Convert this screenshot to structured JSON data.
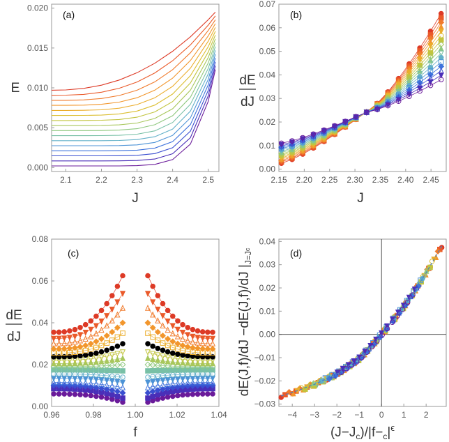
{
  "chart_data": [
    {
      "type": "line",
      "panel_label": "(a)",
      "xlabel": "J",
      "ylabel": "E",
      "xlim": [
        2.06,
        2.53
      ],
      "ylim": [
        -0.0005,
        0.0205
      ],
      "xticks": [
        "2.1",
        "2.2",
        "2.3",
        "2.4",
        "2.5"
      ],
      "yticks": [
        "0.000",
        "0.005",
        "0.010",
        "0.015",
        "0.020"
      ],
      "x": [
        2.06,
        2.1,
        2.15,
        2.2,
        2.25,
        2.3,
        2.35,
        2.4,
        2.45,
        2.5,
        2.52
      ],
      "series_note": "16 curves, f from far (red, top) to near f_c (purple, bottom)",
      "series_ends": {
        "start": [
          0.0002,
          0.0097
        ],
        "end": [
          0.0123,
          0.0195
        ]
      }
    },
    {
      "type": "scatter",
      "panel_label": "(b)",
      "xlabel": "J",
      "ylabel": "dE/dJ",
      "ylabel_top": "dE",
      "ylabel_bottom": "dJ",
      "xlim": [
        2.15,
        2.48
      ],
      "ylim": [
        -0.001,
        0.07
      ],
      "xticks": [
        "2.15",
        "2.20",
        "2.25",
        "2.30",
        "2.35",
        "2.40",
        "2.45"
      ],
      "yticks": [
        "0.00",
        "0.01",
        "0.02",
        "0.03",
        "0.04",
        "0.05",
        "0.06",
        "0.07"
      ],
      "crossing_point": [
        2.32,
        0.024
      ],
      "series_ends": {
        "left": [
          0.0025,
          0.011
        ],
        "right": [
          0.066,
          0.038
        ]
      }
    },
    {
      "type": "scatter",
      "panel_label": "(c)",
      "xlabel": "f",
      "ylabel": "dE/dJ",
      "ylabel_top": "dE",
      "ylabel_bottom": "dJ",
      "xlim": [
        0.96,
        1.04
      ],
      "ylim": [
        0.0,
        0.08
      ],
      "xticks": [
        "0.96",
        "0.98",
        "1.00",
        "1.02",
        "1.04"
      ],
      "yticks": [
        "0.00",
        "0.02",
        "0.04",
        "0.06",
        "0.08"
      ],
      "x_range_left": [
        0.961,
        0.994
      ],
      "x_range_right": [
        1.006,
        1.037
      ],
      "series_outer_values": [
        0.006,
        0.0085,
        0.01,
        0.0115,
        0.0135,
        0.0155,
        0.0175,
        0.019,
        0.0205,
        0.022,
        0.0237,
        0.0255,
        0.0275,
        0.03,
        0.0325,
        0.0355
      ],
      "series_inner_values": [
        0.002,
        0.004,
        0.0065,
        0.009,
        0.0115,
        0.014,
        0.017,
        0.02,
        0.023,
        0.026,
        0.03,
        0.035,
        0.04,
        0.047,
        0.054,
        0.0625
      ],
      "highlight_series": {
        "name": "critical (black)",
        "outer": 0.0237,
        "inner": 0.03
      }
    },
    {
      "type": "scatter",
      "panel_label": "(d)",
      "xlabel": "(J−J_c)/|f−f_c|^ϵ",
      "xlabel_parts": {
        "main": "(J−J",
        "sub1": "c",
        "mid": ")/|f−",
        "f": "f",
        "sub2": "c",
        "end": "|",
        "sup": "ϵ"
      },
      "ylabel": "dE(J,f)/dJ −dE(J,f)/dJ |_{J=J_c}",
      "ylabel_parts": {
        "main": "dE(J,f)/dJ −dE(J,f)/dJ |",
        "sub": "J=J",
        "subsub": "c"
      },
      "xlim": [
        -4.6,
        2.9
      ],
      "ylim": [
        -0.031,
        0.041
      ],
      "xticks": [
        "−4",
        "−3",
        "−2",
        "−1",
        "0",
        "1",
        "2"
      ],
      "yticks": [
        "−0.03",
        "−0.02",
        "−0.01",
        "0.00",
        "0.01",
        "0.02",
        "0.03",
        "0.04"
      ],
      "collapse_curve": {
        "x": [
          -4.5,
          -4,
          -3,
          -2,
          -1,
          -0.5,
          0,
          0.5,
          1,
          1.5,
          2,
          2.7
        ],
        "y": [
          -0.0265,
          -0.025,
          -0.0215,
          -0.017,
          -0.0105,
          -0.0055,
          0.0,
          0.006,
          0.012,
          0.019,
          0.0265,
          0.038
        ]
      }
    }
  ],
  "palette": [
    "#6a1b9a",
    "#4a2fb8",
    "#3a4fd0",
    "#3d72dc",
    "#4d93d6",
    "#62b0c8",
    "#78c0a6",
    "#8fc87f",
    "#a8c75c",
    "#c2c43e",
    "#dbbe30",
    "#ebad2c",
    "#f2962c",
    "#f07a2b",
    "#ea5a2a",
    "#dd3a26"
  ]
}
